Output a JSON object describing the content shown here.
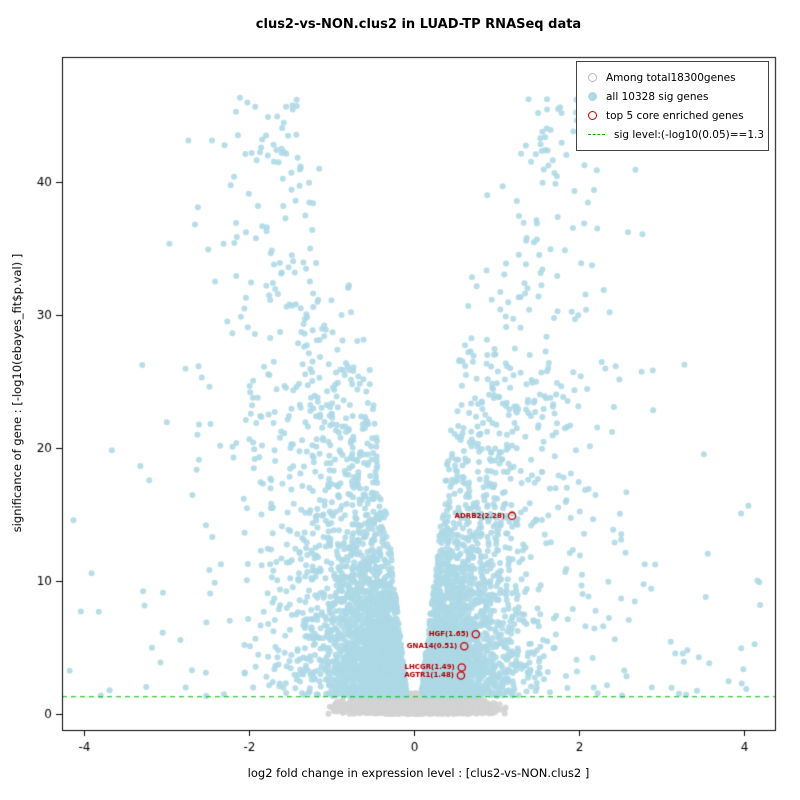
{
  "chart_data": {
    "type": "scatter",
    "title": "clus2-vs-NON.clus2 in LUAD-TP RNASeq data",
    "xlabel": "log2 fold change in expression level : [clus2-vs-NON.clus2 ]",
    "ylabel": "significance of gene : [-log10(ebayes_fit$p.val) ]",
    "xlim": [
      -4.27,
      4.38
    ],
    "ylim": [
      -1.2,
      49.4
    ],
    "x_ticks": [
      -4,
      -2,
      0,
      2,
      4
    ],
    "y_ticks": [
      0,
      10,
      20,
      30,
      40
    ],
    "grid": false,
    "legend_position": "top-right",
    "sig_line": {
      "y": 1.3,
      "color": "#00bb00",
      "label": "sig level:(-log10(0.05)==1.3"
    },
    "legend": {
      "items": [
        {
          "label": "Among total18300genes",
          "symbol": "open-circle",
          "color": "#b8b8b8"
        },
        {
          "label": "all 10328 sig genes",
          "symbol": "filled-circle",
          "color": "#add8e6"
        },
        {
          "label": "top 5 core enriched genes",
          "symbol": "open-circle",
          "color": "#cc0000"
        },
        {
          "label": "sig level:(-log10(0.05)==1.3",
          "symbol": "dashed-line",
          "color": "#00bb00"
        }
      ]
    },
    "series": {
      "background": {
        "name": "Among total18300genes",
        "total_genes": 18300,
        "color": "#d3d3d3",
        "count": 1700,
        "seed": 42,
        "x_sd": 0.42,
        "x_max": 1.12,
        "y_max": 1.55
      },
      "significant": {
        "name": "all 10328 sig genes",
        "sig_genes": 10328,
        "color": "#add8e6",
        "count": 5200,
        "seed": 7,
        "inner_slope": 0.018,
        "inner_base": 0.06,
        "x_abs_max": 4.25,
        "y_abs_max": 47.5,
        "high_left_bias": 0.58
      },
      "top_genes": {
        "name": "top 5 core enriched genes",
        "color": "#cc0000",
        "label_color": "#aa0000",
        "points": [
          {
            "label": "ADRB2(2.28)",
            "x": 1.19,
            "y": 14.9
          },
          {
            "label": "HGF(1.65)",
            "x": 0.75,
            "y": 6.0
          },
          {
            "label": "GNA14(0.51)",
            "x": 0.61,
            "y": 5.1
          },
          {
            "label": "LHCGR(1.49)",
            "x": 0.58,
            "y": 3.5
          },
          {
            "label": "AGTR1(1.48)",
            "x": 0.57,
            "y": 2.9
          }
        ]
      }
    }
  }
}
